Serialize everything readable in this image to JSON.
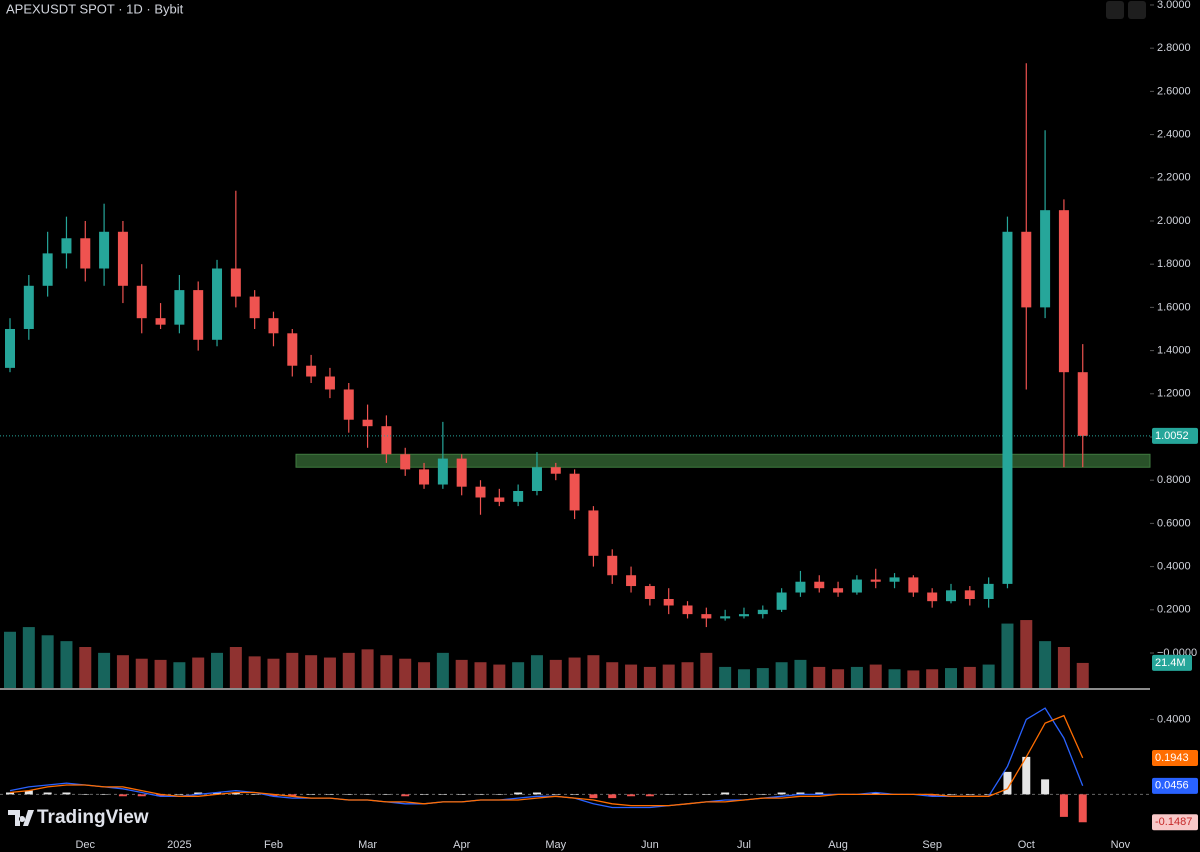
{
  "chart_data": {
    "type": "candlestick",
    "title": "APEXUSDT SPOT · 1D · Bybit",
    "brand": "TradingView",
    "categories": [
      null,
      null,
      null,
      null,
      "Dec",
      null,
      null,
      null,
      null,
      "2025",
      null,
      null,
      null,
      null,
      "Feb",
      null,
      null,
      null,
      null,
      "Mar",
      null,
      null,
      null,
      null,
      "Apr",
      null,
      null,
      null,
      null,
      "May",
      null,
      null,
      null,
      null,
      "Jun",
      null,
      null,
      null,
      null,
      "Jul",
      null,
      null,
      null,
      null,
      "Aug",
      null,
      null,
      null,
      null,
      "Sep",
      null,
      null,
      null,
      null,
      "Oct",
      null,
      null,
      null,
      null,
      "Nov"
    ],
    "open": [
      1.32,
      1.5,
      1.7,
      1.85,
      1.92,
      1.78,
      1.95,
      1.7,
      1.55,
      1.52,
      1.68,
      1.45,
      1.78,
      1.65,
      1.55,
      1.48,
      1.33,
      1.28,
      1.22,
      1.08,
      1.05,
      0.92,
      0.85,
      0.78,
      0.9,
      0.77,
      0.72,
      0.7,
      0.75,
      0.86,
      0.83,
      0.66,
      0.45,
      0.36,
      0.31,
      0.25,
      0.22,
      0.18,
      0.16,
      0.17,
      0.18,
      0.2,
      0.28,
      0.33,
      0.3,
      0.28,
      0.34,
      0.33,
      0.35,
      0.28,
      0.24,
      0.29,
      0.25,
      0.32,
      1.95,
      1.6,
      2.05,
      1.3,
      null,
      null
    ],
    "high": [
      1.55,
      1.75,
      1.95,
      2.02,
      2.0,
      2.08,
      2.0,
      1.8,
      1.62,
      1.75,
      1.72,
      1.82,
      2.14,
      1.68,
      1.58,
      1.5,
      1.38,
      1.32,
      1.25,
      1.15,
      1.1,
      0.95,
      0.88,
      1.07,
      0.92,
      0.8,
      0.76,
      0.78,
      0.93,
      0.88,
      0.85,
      0.68,
      0.48,
      0.4,
      0.32,
      0.3,
      0.24,
      0.21,
      0.2,
      0.21,
      0.22,
      0.3,
      0.38,
      0.36,
      0.33,
      0.36,
      0.39,
      0.37,
      0.36,
      0.3,
      0.32,
      0.31,
      0.35,
      2.02,
      2.73,
      2.42,
      2.1,
      1.43,
      null,
      null
    ],
    "low": [
      1.3,
      1.45,
      1.65,
      1.78,
      1.72,
      1.7,
      1.62,
      1.48,
      1.5,
      1.48,
      1.4,
      1.42,
      1.6,
      1.5,
      1.42,
      1.28,
      1.25,
      1.18,
      1.02,
      0.95,
      0.88,
      0.82,
      0.76,
      0.76,
      0.73,
      0.64,
      0.68,
      0.68,
      0.73,
      0.8,
      0.62,
      0.4,
      0.32,
      0.28,
      0.22,
      0.18,
      0.16,
      0.12,
      0.15,
      0.16,
      0.16,
      0.19,
      0.26,
      0.28,
      0.26,
      0.27,
      0.3,
      0.3,
      0.26,
      0.21,
      0.23,
      0.22,
      0.21,
      0.3,
      1.22,
      1.55,
      0.86,
      0.86,
      null,
      null
    ],
    "close": [
      1.5,
      1.7,
      1.85,
      1.92,
      1.78,
      1.95,
      1.7,
      1.55,
      1.52,
      1.68,
      1.45,
      1.78,
      1.65,
      1.55,
      1.48,
      1.33,
      1.28,
      1.22,
      1.08,
      1.05,
      0.92,
      0.85,
      0.78,
      0.9,
      0.77,
      0.72,
      0.7,
      0.75,
      0.86,
      0.83,
      0.66,
      0.45,
      0.36,
      0.31,
      0.25,
      0.22,
      0.18,
      0.16,
      0.17,
      0.18,
      0.2,
      0.28,
      0.33,
      0.3,
      0.28,
      0.34,
      0.33,
      0.35,
      0.28,
      0.24,
      0.29,
      0.25,
      0.32,
      1.95,
      1.6,
      2.05,
      1.3,
      1.0052,
      null,
      null
    ],
    "volume": [
      48,
      52,
      45,
      40,
      35,
      30,
      28,
      25,
      24,
      22,
      26,
      30,
      35,
      27,
      25,
      30,
      28,
      26,
      30,
      33,
      28,
      25,
      22,
      30,
      24,
      22,
      20,
      22,
      28,
      24,
      26,
      28,
      22,
      20,
      18,
      20,
      22,
      30,
      18,
      16,
      17,
      22,
      24,
      18,
      16,
      18,
      20,
      16,
      15,
      16,
      17,
      18,
      20,
      55,
      58,
      40,
      35,
      21.4,
      null,
      null
    ],
    "last_volume_label": "21.4M",
    "up_color": "#26a69a",
    "down_color": "#ef5350",
    "ylim": [
      -0.162,
      3.023
    ],
    "yticks": [
      {
        "value": 0,
        "label": "−0.0000"
      },
      {
        "value": 0.2,
        "label": "0.2000"
      },
      {
        "value": 0.4,
        "label": "0.4000"
      },
      {
        "value": 0.6,
        "label": "0.6000"
      },
      {
        "value": 0.8,
        "label": "0.8000"
      },
      {
        "value": 1.0,
        "label": "1.0000"
      },
      {
        "value": 1.2,
        "label": "1.2000"
      },
      {
        "value": 1.4,
        "label": "1.4000"
      },
      {
        "value": 1.6,
        "label": "1.6000"
      },
      {
        "value": 1.8,
        "label": "1.8000"
      },
      {
        "value": 2.0,
        "label": "2.0000"
      },
      {
        "value": 2.2,
        "label": "2.2000"
      },
      {
        "value": 2.4,
        "label": "2.4000"
      },
      {
        "value": 2.6,
        "label": "2.6000"
      },
      {
        "value": 2.8,
        "label": "2.8000"
      },
      {
        "value": 3.0,
        "label": "3.0000"
      }
    ],
    "volume_ylim": [
      0,
      70
    ],
    "zone": {
      "low": 0.86,
      "high": 0.92,
      "color": "#2d5a2d"
    },
    "macd_panel": {
      "ylim": [
        -0.19,
        0.53
      ],
      "yticks": [
        {
          "value": 0.4,
          "label": "0.4000"
        }
      ],
      "macd": {
        "color": "#2962ff",
        "values": [
          0.02,
          0.04,
          0.05,
          0.06,
          0.05,
          0.04,
          0.03,
          0.01,
          -0.01,
          -0.01,
          0.0,
          0.01,
          0.02,
          0.01,
          -0.01,
          -0.02,
          -0.02,
          -0.02,
          -0.03,
          -0.03,
          -0.04,
          -0.05,
          -0.05,
          -0.04,
          -0.04,
          -0.03,
          -0.03,
          -0.02,
          -0.01,
          -0.01,
          -0.02,
          -0.05,
          -0.07,
          -0.07,
          -0.07,
          -0.06,
          -0.05,
          -0.04,
          -0.03,
          -0.03,
          -0.02,
          -0.01,
          0.0,
          0.0,
          0.0,
          0.0,
          0.01,
          0.0,
          0.0,
          -0.01,
          -0.01,
          -0.01,
          -0.01,
          0.15,
          0.4,
          0.46,
          0.3,
          0.0456,
          null,
          null
        ]
      },
      "signal": {
        "color": "#ff6d00",
        "values": [
          0.01,
          0.02,
          0.04,
          0.05,
          0.05,
          0.04,
          0.04,
          0.02,
          0.0,
          -0.01,
          -0.01,
          0.0,
          0.01,
          0.01,
          0.0,
          -0.01,
          -0.02,
          -0.02,
          -0.03,
          -0.03,
          -0.04,
          -0.04,
          -0.05,
          -0.04,
          -0.04,
          -0.03,
          -0.03,
          -0.03,
          -0.02,
          -0.01,
          -0.02,
          -0.03,
          -0.05,
          -0.06,
          -0.06,
          -0.06,
          -0.05,
          -0.04,
          -0.04,
          -0.03,
          -0.02,
          -0.02,
          -0.01,
          -0.01,
          0.0,
          0.0,
          0.0,
          0.0,
          0.0,
          0.0,
          -0.01,
          -0.01,
          -0.01,
          0.03,
          0.2,
          0.38,
          0.42,
          0.1943,
          null,
          null
        ]
      },
      "histogram": {
        "up_color": "#e6e6e6",
        "down_color": "#ef5350",
        "values": [
          0.01,
          0.02,
          0.01,
          0.01,
          0.0,
          0.0,
          -0.01,
          -0.01,
          -0.01,
          0.0,
          0.01,
          0.01,
          0.01,
          0.0,
          -0.01,
          -0.01,
          0.0,
          0.0,
          0.0,
          0.0,
          0.0,
          -0.01,
          0.0,
          0.0,
          0.0,
          0.0,
          0.0,
          0.01,
          0.01,
          0.0,
          0.0,
          -0.02,
          -0.02,
          -0.01,
          -0.01,
          0.0,
          0.0,
          0.0,
          0.01,
          0.0,
          0.0,
          0.01,
          0.01,
          0.01,
          0.0,
          0.0,
          0.01,
          0.0,
          0.0,
          -0.01,
          0.0,
          0.0,
          0.0,
          0.12,
          0.2,
          0.08,
          -0.12,
          -0.1487,
          null,
          null
        ]
      }
    }
  }
}
